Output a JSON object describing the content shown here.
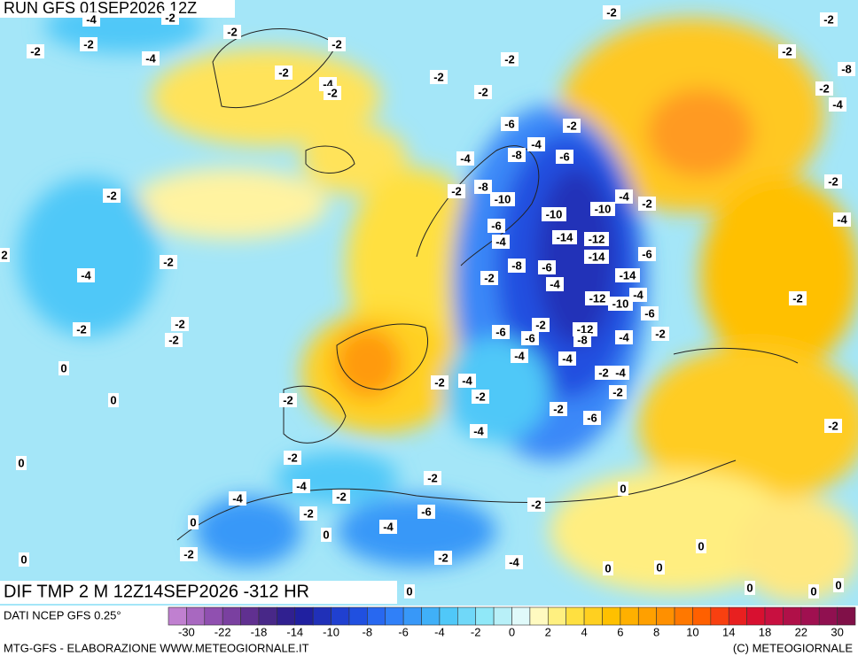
{
  "header": "RUN GFS 01SEP2026 12Z",
  "field_title": "DIF TMP 2 M 12Z14SEP2026 -312 HR",
  "source": "DATI NCEP GFS 0.25°",
  "credit_left": "MTG-GFS - ELABORAZIONE WWW.METEOGIORNALE.IT",
  "credit_right": "(C) METEOGIORNALE",
  "colorbar": {
    "colors": [
      "#c080d0",
      "#a868c0",
      "#9050b0",
      "#7a40a0",
      "#603090",
      "#482888",
      "#302090",
      "#2020a0",
      "#2030b8",
      "#2040d0",
      "#2050e0",
      "#2868f0",
      "#3080f8",
      "#3898f8",
      "#40b0f8",
      "#50c8f8",
      "#70d8f8",
      "#90e8f8",
      "#b8f0f8",
      "#e0fafa",
      "#fffac0",
      "#fff080",
      "#ffe040",
      "#ffd020",
      "#ffc000",
      "#ffb000",
      "#ffa000",
      "#ff9000",
      "#ff7800",
      "#ff6000",
      "#f84010",
      "#e82020",
      "#d81030",
      "#c81040",
      "#b01048",
      "#a01050",
      "#901050",
      "#801048"
    ],
    "ticks": [
      -30,
      -22,
      -18,
      -14,
      -10,
      -8,
      -6,
      -4,
      -2,
      0,
      2,
      4,
      6,
      8,
      10,
      14,
      18,
      22,
      30
    ]
  },
  "map_labels": [
    -4,
    -2,
    -2,
    -2,
    -2,
    -4,
    -2,
    -2,
    -4,
    -2,
    -2,
    -2,
    -2,
    -2,
    -2,
    -2,
    -8,
    -2,
    -4,
    -6,
    -2,
    -4,
    -8,
    -6,
    -4,
    -2,
    -2,
    -8,
    -10,
    -4,
    -2,
    -10,
    -10,
    -6,
    -4,
    -14,
    -12,
    -4,
    -2,
    -2,
    -4,
    -8,
    -6,
    -14,
    -6,
    -2,
    -4,
    -14,
    -2,
    -12,
    -10,
    -4,
    -6,
    -2,
    -2,
    -2,
    -6,
    -6,
    -2,
    -12,
    -8,
    -4,
    -2,
    0,
    -4,
    -4,
    -2,
    -4,
    -2,
    -4,
    0,
    -2,
    -2,
    -2,
    -2,
    -6,
    -4,
    -2,
    0,
    -2,
    -2,
    -4,
    0,
    -2,
    -4,
    -6,
    -2,
    -2,
    0,
    -4,
    0,
    0,
    -2,
    -2,
    -4,
    0,
    0,
    0,
    0,
    0,
    0,
    0,
    2
  ]
}
